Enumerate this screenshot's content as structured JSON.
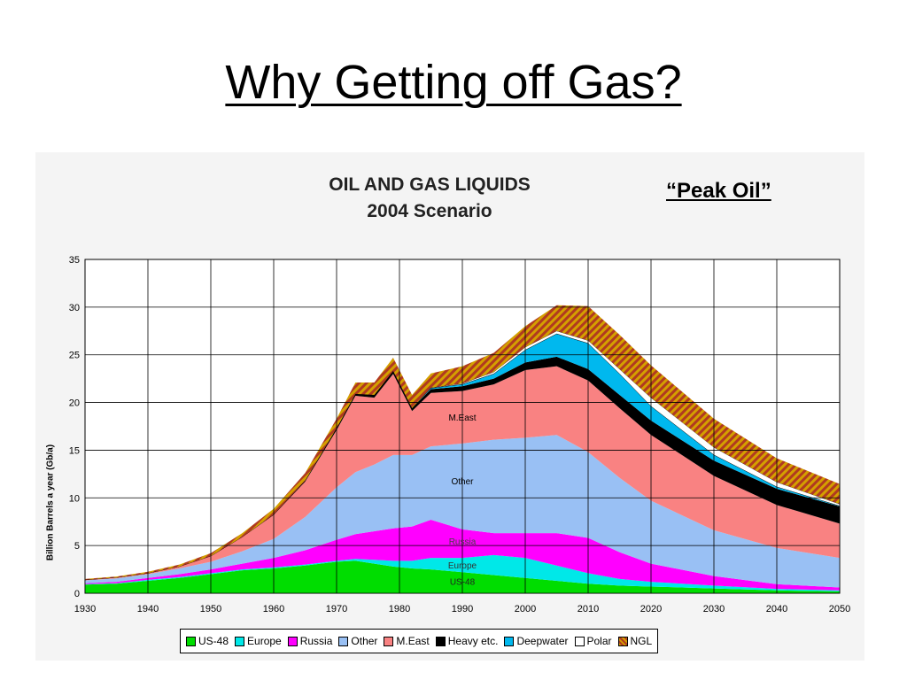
{
  "slide": {
    "title": "Why Getting off Gas?"
  },
  "annotation": "“Peak Oil”",
  "chart_data": {
    "type": "area",
    "title": "OIL AND GAS LIQUIDS",
    "subtitle": "2004 Scenario",
    "ylabel": "Billion Barrels a year (Gb/a)",
    "xlabel": "",
    "xlim": [
      1930,
      2050
    ],
    "ylim": [
      0,
      35
    ],
    "xticks": [
      1930,
      1940,
      1950,
      1960,
      1970,
      1980,
      1990,
      2000,
      2010,
      2020,
      2030,
      2040,
      2050
    ],
    "yticks": [
      0,
      5,
      10,
      15,
      20,
      25,
      30,
      35
    ],
    "grid": true,
    "legend_position": "bottom",
    "stacked": true,
    "x": [
      1930,
      1935,
      1940,
      1945,
      1950,
      1955,
      1960,
      1965,
      1970,
      1973,
      1976,
      1979,
      1982,
      1985,
      1990,
      1995,
      2000,
      2005,
      2010,
      2015,
      2020,
      2030,
      2040,
      2050
    ],
    "series": [
      {
        "name": "US-48",
        "color": "#00dd00",
        "values": [
          0.9,
          1.0,
          1.3,
          1.6,
          2.0,
          2.4,
          2.6,
          2.9,
          3.3,
          3.4,
          3.1,
          2.8,
          2.6,
          2.5,
          2.2,
          1.9,
          1.6,
          1.3,
          1.0,
          0.8,
          0.7,
          0.5,
          0.3,
          0.2
        ]
      },
      {
        "name": "Europe",
        "color": "#00e8e8",
        "values": [
          0.05,
          0.05,
          0.1,
          0.1,
          0.1,
          0.1,
          0.1,
          0.1,
          0.1,
          0.2,
          0.4,
          0.6,
          0.8,
          1.2,
          1.5,
          2.1,
          2.1,
          1.6,
          1.1,
          0.7,
          0.5,
          0.3,
          0.15,
          0.1
        ]
      },
      {
        "name": "Russia",
        "color": "#ff00ff",
        "values": [
          0.1,
          0.15,
          0.2,
          0.3,
          0.4,
          0.6,
          1.0,
          1.5,
          2.2,
          2.6,
          3.0,
          3.4,
          3.6,
          4.0,
          3.0,
          2.3,
          2.6,
          3.4,
          3.7,
          2.8,
          1.9,
          1.0,
          0.5,
          0.3
        ]
      },
      {
        "name": "Other",
        "color": "#99c0f4",
        "values": [
          0.3,
          0.35,
          0.4,
          0.6,
          0.8,
          1.3,
          2.0,
          3.5,
          5.5,
          6.5,
          7.0,
          7.7,
          7.5,
          7.7,
          9.0,
          9.8,
          10.0,
          10.3,
          9.0,
          7.8,
          6.6,
          4.8,
          3.8,
          3.1
        ]
      },
      {
        "name": "M.East",
        "color": "#f98282",
        "values": [
          0.05,
          0.1,
          0.1,
          0.2,
          0.6,
          1.5,
          2.5,
          3.7,
          6.0,
          8.0,
          7.0,
          8.5,
          4.6,
          5.6,
          5.5,
          5.8,
          7.1,
          7.2,
          7.5,
          7.3,
          6.9,
          5.7,
          4.5,
          3.6
        ]
      },
      {
        "name": "Heavy etc.",
        "color": "#000000",
        "values": [
          0,
          0,
          0,
          0,
          0,
          0,
          0.05,
          0.1,
          0.2,
          0.2,
          0.3,
          0.3,
          0.3,
          0.4,
          0.5,
          0.6,
          0.8,
          1.0,
          1.2,
          1.4,
          1.5,
          1.6,
          1.7,
          1.8
        ]
      },
      {
        "name": "Deepwater",
        "color": "#00b8ee",
        "values": [
          0,
          0,
          0,
          0,
          0,
          0,
          0,
          0,
          0,
          0,
          0,
          0,
          0,
          0.1,
          0.2,
          0.5,
          1.3,
          2.4,
          2.7,
          2.2,
          1.5,
          0.6,
          0.2,
          0.05
        ]
      },
      {
        "name": "Polar",
        "color": "#ffffff",
        "values": [
          0,
          0,
          0,
          0,
          0,
          0,
          0,
          0,
          0,
          0,
          0,
          0,
          0,
          0.05,
          0.1,
          0.2,
          0.3,
          0.3,
          0.3,
          0.5,
          0.9,
          0.8,
          0.5,
          0.2
        ]
      },
      {
        "name": "NGL",
        "color": "#d4a000",
        "values": [
          0.1,
          0.1,
          0.15,
          0.2,
          0.3,
          0.4,
          0.6,
          0.8,
          1.0,
          1.2,
          1.3,
          1.4,
          1.4,
          1.5,
          1.8,
          2.0,
          2.2,
          2.7,
          3.6,
          3.6,
          3.4,
          3.0,
          2.5,
          2.1
        ]
      }
    ],
    "labels": [
      {
        "text": "M.East",
        "x": 1990,
        "y": 18.1,
        "color": "#000000"
      },
      {
        "text": "Other",
        "x": 1990,
        "y": 11.4,
        "color": "#000000"
      },
      {
        "text": "Russia",
        "x": 1990,
        "y": 5.1,
        "color": "#444444"
      },
      {
        "text": "Europe",
        "x": 1990,
        "y": 2.6,
        "color": "#333333"
      },
      {
        "text": "US-48",
        "x": 1990,
        "y": 0.9,
        "color": "#222222"
      }
    ]
  }
}
